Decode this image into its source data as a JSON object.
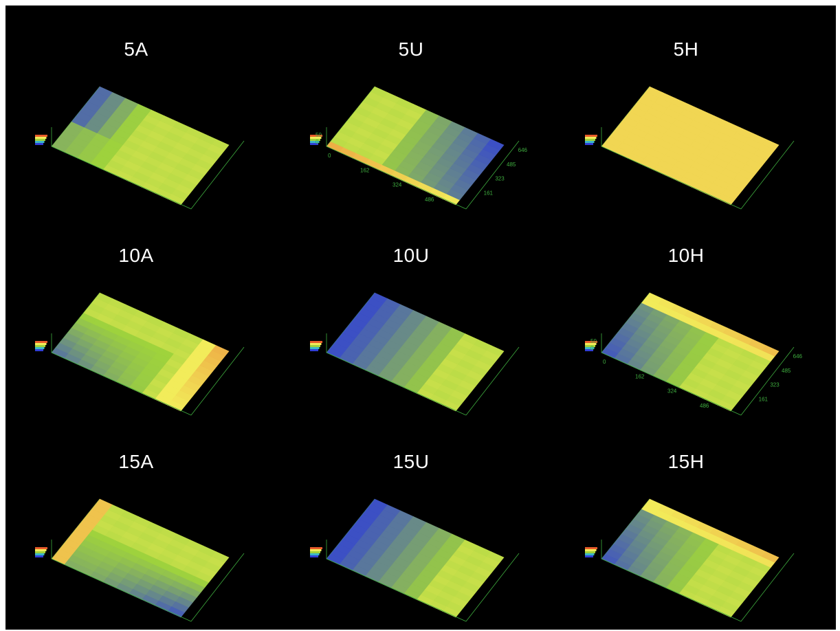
{
  "figure": {
    "panels": [
      {
        "label": "5A",
        "z_ticks": [
          "",
          ""
        ],
        "x_ticks": [
          "",
          "",
          "",
          ""
        ],
        "y_ticks": [
          "",
          "",
          ""
        ],
        "scheme": "greenLeftBlue"
      },
      {
        "label": "5U",
        "z_ticks": [
          "50",
          "0"
        ],
        "x_ticks": [
          "0",
          "162",
          "324",
          "486"
        ],
        "y_ticks": [
          "161",
          "323",
          "485",
          "646"
        ],
        "y_end": "648",
        "scheme": "blueRight"
      },
      {
        "label": "5H",
        "z_ticks": [
          "",
          ""
        ],
        "x_ticks": [
          "",
          "",
          "",
          ""
        ],
        "y_ticks": [
          "",
          "",
          ""
        ],
        "scheme": "yellowBlueRight"
      },
      {
        "label": "10A",
        "z_ticks": [
          "",
          ""
        ],
        "x_ticks": [
          "",
          "",
          "",
          ""
        ],
        "y_ticks": [
          "",
          "",
          ""
        ],
        "scheme": "blueFrontLeft"
      },
      {
        "label": "10U",
        "z_ticks": [
          "",
          ""
        ],
        "x_ticks": [
          "",
          "",
          "",
          ""
        ],
        "y_ticks": [
          "",
          "",
          ""
        ],
        "scheme": "blueLeft"
      },
      {
        "label": "10H",
        "z_ticks": [
          "50",
          "0"
        ],
        "x_ticks": [
          "0",
          "162",
          "324",
          "486"
        ],
        "y_ticks": [
          "161",
          "323",
          "485",
          "646"
        ],
        "y_end": "648",
        "scheme": "blueBackLeft"
      },
      {
        "label": "15A",
        "z_ticks": [
          "",
          ""
        ],
        "x_ticks": [
          "",
          "",
          "",
          ""
        ],
        "y_ticks": [
          "",
          "",
          ""
        ],
        "scheme": "blueFront"
      },
      {
        "label": "15U",
        "z_ticks": [
          "",
          ""
        ],
        "x_ticks": [
          "",
          "",
          "",
          ""
        ],
        "y_ticks": [
          "",
          "",
          ""
        ],
        "scheme": "blueLeft"
      },
      {
        "label": "15H",
        "z_ticks": [
          "",
          ""
        ],
        "x_ticks": [
          "",
          "",
          "",
          ""
        ],
        "y_ticks": [
          "",
          "",
          ""
        ],
        "scheme": "blueBackLeft"
      }
    ],
    "colors": {
      "background": "#000000",
      "axis": "#3fae3f",
      "high": "#e85b2a",
      "mid_high": "#f2ec5a",
      "mid": "#9fd33c",
      "low": "#2f3fd6",
      "title": "#ffffff"
    }
  }
}
